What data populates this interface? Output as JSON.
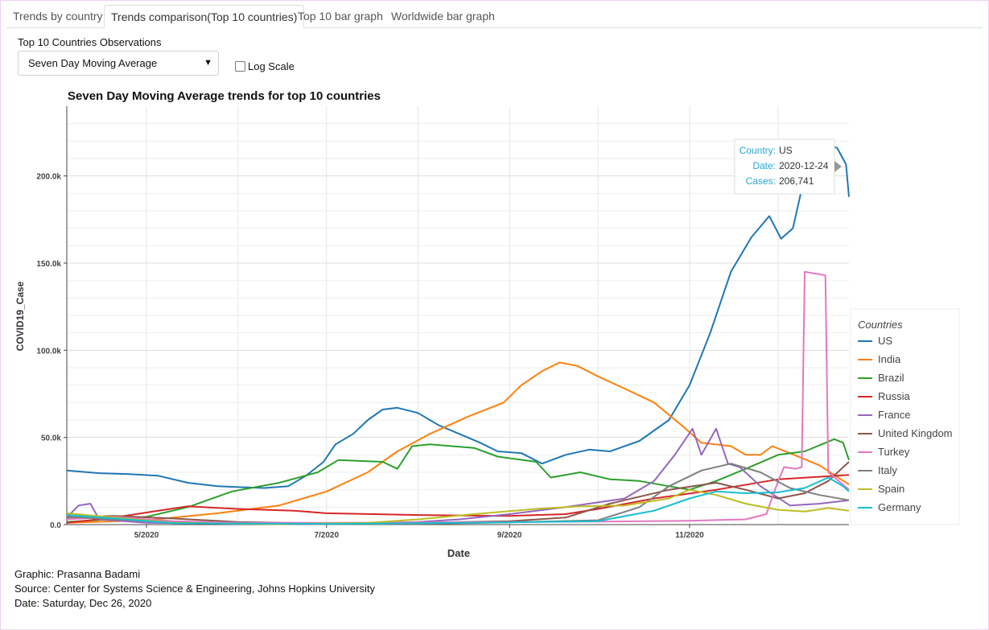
{
  "tabs": [
    {
      "label": "Trends by country",
      "active": false
    },
    {
      "label": "Trends comparison(Top 10 countries)",
      "active": true
    },
    {
      "label": "Top 10 bar graph",
      "active": false
    },
    {
      "label": "Worldwide bar graph",
      "active": false
    }
  ],
  "controls": {
    "select_label": "Top 10 Countries Observations",
    "select_value": "Seven Day Moving Average",
    "log_scale_label": "Log Scale",
    "log_scale_checked": false
  },
  "footer": {
    "graphic": "Graphic: Prasanna Badami",
    "source": "Source: Center for Systems Science & Engineering, Johns Hopkins University",
    "date": "Date: Saturday, Dec 26, 2020"
  },
  "tooltip": {
    "country_key": "Country:",
    "country_value": "US",
    "date_key": "Date:",
    "date_value": "2020-12-24",
    "cases_key": "Cases:",
    "cases_value": "206,741"
  },
  "chart_data": {
    "type": "line",
    "title": "Seven Day Moving Average trends for top 10 countries",
    "xlabel": "Date",
    "ylabel": "COVID19_Case",
    "xlim": [
      "2020-04-04",
      "2020-12-25"
    ],
    "ylim": [
      0,
      240000
    ],
    "x_ticks": [
      {
        "date": "2020-05-01",
        "label": "5/2020"
      },
      {
        "date": "2020-07-01",
        "label": "7/2020"
      },
      {
        "date": "2020-09-01",
        "label": "9/2020"
      },
      {
        "date": "2020-11-01",
        "label": "11/2020"
      }
    ],
    "y_ticks": [
      {
        "value": 0,
        "label": "0.0"
      },
      {
        "value": 50000,
        "label": "50.0k"
      },
      {
        "value": 100000,
        "label": "100.0k"
      },
      {
        "value": 150000,
        "label": "150.0k"
      },
      {
        "value": 200000,
        "label": "200.0k"
      }
    ],
    "grid": true,
    "legend_title": "Countries",
    "legend_position": "right",
    "series": [
      {
        "name": "US",
        "color": "#1f77b4",
        "points": [
          [
            "2020-04-04",
            31000
          ],
          [
            "2020-04-15",
            29500
          ],
          [
            "2020-04-25",
            29000
          ],
          [
            "2020-05-05",
            28000
          ],
          [
            "2020-05-15",
            24000
          ],
          [
            "2020-05-25",
            22000
          ],
          [
            "2020-06-01",
            21500
          ],
          [
            "2020-06-10",
            21000
          ],
          [
            "2020-06-18",
            22000
          ],
          [
            "2020-06-24",
            28000
          ],
          [
            "2020-06-30",
            36000
          ],
          [
            "2020-07-04",
            46000
          ],
          [
            "2020-07-10",
            52000
          ],
          [
            "2020-07-15",
            60000
          ],
          [
            "2020-07-20",
            66000
          ],
          [
            "2020-07-25",
            67000
          ],
          [
            "2020-08-01",
            64000
          ],
          [
            "2020-08-08",
            57000
          ],
          [
            "2020-08-15",
            52000
          ],
          [
            "2020-08-22",
            47000
          ],
          [
            "2020-08-28",
            42000
          ],
          [
            "2020-09-05",
            41000
          ],
          [
            "2020-09-12",
            35000
          ],
          [
            "2020-09-20",
            40000
          ],
          [
            "2020-09-28",
            43000
          ],
          [
            "2020-10-05",
            42000
          ],
          [
            "2020-10-15",
            48000
          ],
          [
            "2020-10-25",
            60000
          ],
          [
            "2020-11-01",
            80000
          ],
          [
            "2020-11-08",
            110000
          ],
          [
            "2020-11-15",
            145000
          ],
          [
            "2020-11-22",
            165000
          ],
          [
            "2020-11-28",
            177000
          ],
          [
            "2020-12-02",
            164000
          ],
          [
            "2020-12-06",
            170000
          ],
          [
            "2020-12-10",
            200000
          ],
          [
            "2020-12-14",
            212000
          ],
          [
            "2020-12-18",
            218000
          ],
          [
            "2020-12-21",
            216000
          ],
          [
            "2020-12-24",
            206741
          ],
          [
            "2020-12-25",
            188000
          ]
        ]
      },
      {
        "name": "India",
        "color": "#ff7f0e",
        "points": [
          [
            "2020-04-04",
            1000
          ],
          [
            "2020-05-01",
            2500
          ],
          [
            "2020-05-25",
            6500
          ],
          [
            "2020-06-15",
            11000
          ],
          [
            "2020-07-01",
            19000
          ],
          [
            "2020-07-15",
            30000
          ],
          [
            "2020-07-25",
            42000
          ],
          [
            "2020-08-05",
            52000
          ],
          [
            "2020-08-18",
            62000
          ],
          [
            "2020-08-30",
            70000
          ],
          [
            "2020-09-05",
            80000
          ],
          [
            "2020-09-12",
            88000
          ],
          [
            "2020-09-18",
            93000
          ],
          [
            "2020-09-24",
            91000
          ],
          [
            "2020-10-01",
            85000
          ],
          [
            "2020-10-10",
            78000
          ],
          [
            "2020-10-20",
            70000
          ],
          [
            "2020-10-30",
            56000
          ],
          [
            "2020-11-05",
            47000
          ],
          [
            "2020-11-15",
            45000
          ],
          [
            "2020-11-20",
            40000
          ],
          [
            "2020-11-25",
            40000
          ],
          [
            "2020-11-29",
            45000
          ],
          [
            "2020-12-05",
            41000
          ],
          [
            "2020-12-15",
            34000
          ],
          [
            "2020-12-25",
            23000
          ]
        ]
      },
      {
        "name": "Brazil",
        "color": "#2ca02c",
        "points": [
          [
            "2020-04-04",
            1500
          ],
          [
            "2020-05-01",
            4500
          ],
          [
            "2020-05-15",
            10000
          ],
          [
            "2020-05-30",
            19000
          ],
          [
            "2020-06-15",
            24000
          ],
          [
            "2020-06-28",
            30000
          ],
          [
            "2020-07-05",
            37000
          ],
          [
            "2020-07-20",
            36000
          ],
          [
            "2020-07-25",
            32000
          ],
          [
            "2020-07-30",
            45000
          ],
          [
            "2020-08-05",
            46000
          ],
          [
            "2020-08-20",
            44000
          ],
          [
            "2020-08-28",
            39000
          ],
          [
            "2020-09-10",
            36000
          ],
          [
            "2020-09-15",
            27000
          ],
          [
            "2020-09-25",
            30000
          ],
          [
            "2020-10-05",
            26000
          ],
          [
            "2020-10-15",
            25000
          ],
          [
            "2020-10-25",
            22000
          ],
          [
            "2020-11-01",
            20000
          ],
          [
            "2020-11-10",
            25000
          ],
          [
            "2020-11-20",
            32000
          ],
          [
            "2020-12-01",
            40000
          ],
          [
            "2020-12-10",
            42000
          ],
          [
            "2020-12-20",
            49000
          ],
          [
            "2020-12-23",
            47000
          ],
          [
            "2020-12-25",
            37000
          ]
        ]
      },
      {
        "name": "Russia",
        "color": "#d62728",
        "points": [
          [
            "2020-04-04",
            1000
          ],
          [
            "2020-04-20",
            4000
          ],
          [
            "2020-05-05",
            8000
          ],
          [
            "2020-05-15",
            10500
          ],
          [
            "2020-06-01",
            9000
          ],
          [
            "2020-06-20",
            8000
          ],
          [
            "2020-07-01",
            6500
          ],
          [
            "2020-08-01",
            5500
          ],
          [
            "2020-09-01",
            5000
          ],
          [
            "2020-09-20",
            6000
          ],
          [
            "2020-10-01",
            9000
          ],
          [
            "2020-10-20",
            15000
          ],
          [
            "2020-11-10",
            20000
          ],
          [
            "2020-12-01",
            26000
          ],
          [
            "2020-12-25",
            28500
          ]
        ]
      },
      {
        "name": "France",
        "color": "#9467bd",
        "points": [
          [
            "2020-04-04",
            4000
          ],
          [
            "2020-04-08",
            11000
          ],
          [
            "2020-04-12",
            12000
          ],
          [
            "2020-04-15",
            3000
          ],
          [
            "2020-05-01",
            1000
          ],
          [
            "2020-06-01",
            500
          ],
          [
            "2020-07-01",
            500
          ],
          [
            "2020-08-01",
            1500
          ],
          [
            "2020-08-15",
            3000
          ],
          [
            "2020-09-01",
            6000
          ],
          [
            "2020-09-20",
            10000
          ],
          [
            "2020-10-10",
            15000
          ],
          [
            "2020-10-20",
            25000
          ],
          [
            "2020-10-27",
            40000
          ],
          [
            "2020-11-02",
            55000
          ],
          [
            "2020-11-05",
            40000
          ],
          [
            "2020-11-10",
            55000
          ],
          [
            "2020-11-14",
            35000
          ],
          [
            "2020-11-18",
            33000
          ],
          [
            "2020-11-25",
            22000
          ],
          [
            "2020-12-05",
            11000
          ],
          [
            "2020-12-15",
            12000
          ],
          [
            "2020-12-25",
            14000
          ]
        ]
      },
      {
        "name": "United Kingdom",
        "color": "#8c564b",
        "points": [
          [
            "2020-04-04",
            4000
          ],
          [
            "2020-04-20",
            5000
          ],
          [
            "2020-05-10",
            3500
          ],
          [
            "2020-06-01",
            1500
          ],
          [
            "2020-07-01",
            600
          ],
          [
            "2020-08-01",
            1000
          ],
          [
            "2020-09-01",
            2000
          ],
          [
            "2020-09-20",
            4000
          ],
          [
            "2020-10-05",
            12000
          ],
          [
            "2020-10-25",
            20000
          ],
          [
            "2020-11-10",
            24000
          ],
          [
            "2020-11-20",
            20000
          ],
          [
            "2020-12-01",
            15000
          ],
          [
            "2020-12-10",
            18000
          ],
          [
            "2020-12-18",
            25000
          ],
          [
            "2020-12-25",
            36000
          ]
        ]
      },
      {
        "name": "Turkey",
        "color": "#e377c2",
        "points": [
          [
            "2020-04-04",
            3000
          ],
          [
            "2020-04-20",
            4500
          ],
          [
            "2020-05-10",
            2000
          ],
          [
            "2020-06-01",
            1000
          ],
          [
            "2020-07-01",
            1000
          ],
          [
            "2020-09-01",
            1500
          ],
          [
            "2020-10-01",
            1700
          ],
          [
            "2020-11-01",
            2200
          ],
          [
            "2020-11-20",
            3000
          ],
          [
            "2020-11-27",
            6000
          ],
          [
            "2020-12-01",
            25000
          ],
          [
            "2020-12-03",
            33000
          ],
          [
            "2020-12-07",
            32000
          ],
          [
            "2020-12-09",
            33000
          ],
          [
            "2020-12-10",
            145000
          ],
          [
            "2020-12-17",
            143000
          ],
          [
            "2020-12-18",
            30000
          ],
          [
            "2020-12-25",
            20000
          ]
        ]
      },
      {
        "name": "Italy",
        "color": "#7f7f7f",
        "points": [
          [
            "2020-04-04",
            4500
          ],
          [
            "2020-04-20",
            3000
          ],
          [
            "2020-05-10",
            1200
          ],
          [
            "2020-06-01",
            400
          ],
          [
            "2020-07-01",
            300
          ],
          [
            "2020-08-01",
            400
          ],
          [
            "2020-09-01",
            1300
          ],
          [
            "2020-10-01",
            2500
          ],
          [
            "2020-10-15",
            10000
          ],
          [
            "2020-10-25",
            22000
          ],
          [
            "2020-11-05",
            31000
          ],
          [
            "2020-11-15",
            35000
          ],
          [
            "2020-11-25",
            30000
          ],
          [
            "2020-12-05",
            21000
          ],
          [
            "2020-12-15",
            17000
          ],
          [
            "2020-12-25",
            14000
          ]
        ]
      },
      {
        "name": "Spain",
        "color": "#bcbd22",
        "points": [
          [
            "2020-04-04",
            6500
          ],
          [
            "2020-04-20",
            4000
          ],
          [
            "2020-05-10",
            1000
          ],
          [
            "2020-06-15",
            300
          ],
          [
            "2020-07-15",
            1000
          ],
          [
            "2020-08-01",
            3000
          ],
          [
            "2020-08-20",
            6000
          ],
          [
            "2020-09-10",
            9000
          ],
          [
            "2020-09-25",
            10500
          ],
          [
            "2020-10-10",
            11000
          ],
          [
            "2020-10-25",
            15000
          ],
          [
            "2020-11-01",
            20000
          ],
          [
            "2020-11-10",
            17000
          ],
          [
            "2020-11-20",
            12000
          ],
          [
            "2020-12-01",
            8500
          ],
          [
            "2020-12-10",
            7500
          ],
          [
            "2020-12-18",
            9500
          ],
          [
            "2020-12-25",
            8000
          ]
        ]
      },
      {
        "name": "Germany",
        "color": "#17becf",
        "points": [
          [
            "2020-04-04",
            5500
          ],
          [
            "2020-04-20",
            3500
          ],
          [
            "2020-05-10",
            800
          ],
          [
            "2020-07-01",
            400
          ],
          [
            "2020-08-01",
            800
          ],
          [
            "2020-09-01",
            1300
          ],
          [
            "2020-10-01",
            2000
          ],
          [
            "2020-10-20",
            8000
          ],
          [
            "2020-11-01",
            15000
          ],
          [
            "2020-11-10",
            19000
          ],
          [
            "2020-11-20",
            18000
          ],
          [
            "2020-12-01",
            18500
          ],
          [
            "2020-12-10",
            21000
          ],
          [
            "2020-12-18",
            27000
          ],
          [
            "2020-12-23",
            22000
          ],
          [
            "2020-12-25",
            19000
          ]
        ]
      }
    ]
  }
}
